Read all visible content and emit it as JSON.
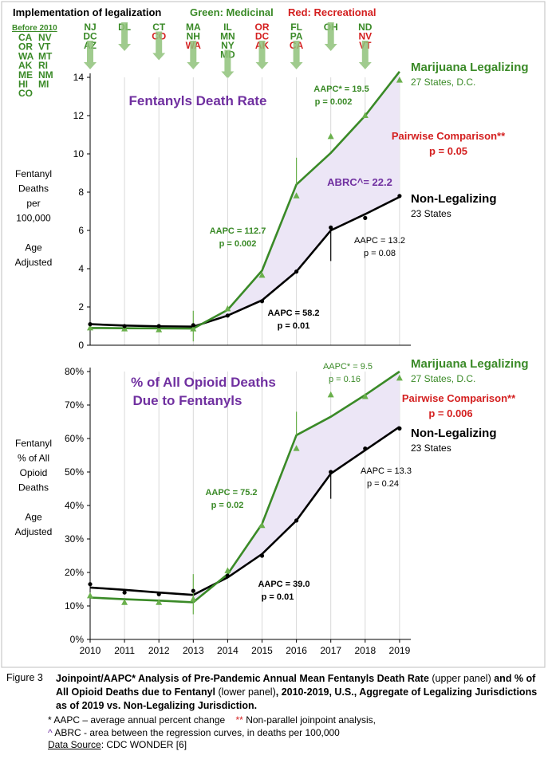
{
  "header": {
    "impl_label": "Implementation of legalization",
    "green_label": "Green: Medicinal",
    "red_label": "Red: Recreational",
    "before_label": "Before 2010",
    "before_states_col1": [
      "CA",
      "OR",
      "WA",
      "AK",
      "ME",
      "HI",
      "CO"
    ],
    "before_states_col2": [
      "NV",
      "VT",
      "MT",
      "RI",
      "NM",
      "MI"
    ],
    "before_states_col2_colors": [
      "green",
      "green",
      "green",
      "green",
      "green",
      "green"
    ],
    "arrows": [
      {
        "year": 2010,
        "states": [
          {
            "s": "NJ",
            "c": "green"
          },
          {
            "s": "DC",
            "c": "green"
          },
          {
            "s": "AZ",
            "c": "green"
          }
        ]
      },
      {
        "year": 2011,
        "states": [
          {
            "s": "DL",
            "c": "green"
          }
        ]
      },
      {
        "year": 2012,
        "states": [
          {
            "s": "CT",
            "c": "green"
          },
          {
            "s": "CO",
            "c": "red"
          }
        ]
      },
      {
        "year": 2013,
        "states": [
          {
            "s": "MA",
            "c": "green"
          },
          {
            "s": "NH",
            "c": "green"
          },
          {
            "s": "WA",
            "c": "red"
          }
        ]
      },
      {
        "year": 2014,
        "states": [
          {
            "s": "IL",
            "c": "green"
          },
          {
            "s": "MN",
            "c": "green"
          },
          {
            "s": "NY",
            "c": "green"
          },
          {
            "s": "MD",
            "c": "green"
          }
        ]
      },
      {
        "year": 2015,
        "states": [
          {
            "s": "OR",
            "c": "red"
          },
          {
            "s": "DC",
            "c": "red"
          },
          {
            "s": "AK",
            "c": "red"
          }
        ]
      },
      {
        "year": 2016,
        "states": [
          {
            "s": "FL",
            "c": "green"
          },
          {
            "s": "PA",
            "c": "green"
          },
          {
            "s": "CA",
            "c": "red"
          }
        ]
      },
      {
        "year": 2017,
        "states": [
          {
            "s": "OH",
            "c": "green"
          }
        ]
      },
      {
        "year": 2018,
        "states": [
          {
            "s": "ND",
            "c": "green"
          },
          {
            "s": "NV",
            "c": "red"
          },
          {
            "s": "VT",
            "c": "red"
          }
        ]
      }
    ]
  },
  "colors": {
    "green_line": "#3a8a27",
    "green_marker": "#6ab04c",
    "black_line": "#000000",
    "shade": "#ece6f6",
    "purple_text": "#7030a0",
    "red_text": "#d42020",
    "arrow_fill": "#8fc27a"
  },
  "chart_data": [
    {
      "type": "line",
      "title": "Fentanyls Death Rate",
      "ylabel_lines": [
        "Fentanyl",
        "Deaths",
        "per",
        "100,000",
        "",
        "Age",
        "Adjusted"
      ],
      "x": [
        2010,
        2011,
        2012,
        2013,
        2014,
        2015,
        2016,
        2017,
        2018,
        2019
      ],
      "ylim": [
        0,
        14
      ],
      "yticks": [
        0,
        2,
        4,
        6,
        8,
        10,
        12,
        14
      ],
      "ytick_labels": [
        "0",
        "2",
        "4",
        "6",
        "8",
        "10",
        "12",
        "14"
      ],
      "series": [
        {
          "name": "Marijuana Legalizing",
          "sublabel": "27 States, D.C.",
          "color": "green",
          "observed": [
            0.9,
            0.85,
            0.8,
            0.85,
            1.9,
            3.65,
            7.8,
            10.9,
            12.0,
            13.85
          ],
          "fit": [
            0.9,
            0.89,
            0.88,
            0.87,
            1.85,
            3.9,
            8.4,
            10.05,
            12.0,
            14.3
          ]
        },
        {
          "name": "Non-Legalizing",
          "sublabel": "23 States",
          "color": "black",
          "observed": [
            1.1,
            1.0,
            1.0,
            1.05,
            1.55,
            2.3,
            3.85,
            6.15,
            6.65,
            7.8
          ],
          "fit": [
            1.1,
            1.03,
            0.99,
            0.97,
            1.55,
            2.35,
            3.85,
            6.0,
            6.85,
            7.75
          ]
        }
      ],
      "annotations": {
        "green_aapc_1": "AAPC = 112.7",
        "green_p_1": "p = 0.002",
        "green_aapc_2": "AAPC* = 19.5",
        "green_p_2": "p = 0.002",
        "black_aapc_1": "AAPC = 58.2",
        "black_p_1": "p = 0.01",
        "black_aapc_2": "AAPC = 13.2",
        "black_p_2": "p = 0.08",
        "abrc": "ABRC^= 22.2",
        "pairwise": "Pairwise Comparison**",
        "pairwise_p": "p = 0.05"
      }
    },
    {
      "type": "line",
      "title": "% of All Opioid Deaths Due to Fentanyls",
      "title_lines": [
        "% of All Opioid Deaths",
        "Due to Fentanyls"
      ],
      "ylabel_lines": [
        "Fentanyl",
        "% of All",
        "Opioid",
        "Deaths",
        "",
        "Age",
        "Adjusted"
      ],
      "x": [
        2010,
        2011,
        2012,
        2013,
        2014,
        2015,
        2016,
        2017,
        2018,
        2019
      ],
      "ylim": [
        0,
        80
      ],
      "yticks": [
        0,
        10,
        20,
        30,
        40,
        50,
        60,
        70,
        80
      ],
      "ytick_labels": [
        "0%",
        "10%",
        "20%",
        "30%",
        "40%",
        "50%",
        "60%",
        "70%",
        "80%"
      ],
      "xtick_labels": [
        "2010",
        "2011",
        "2012",
        "2013",
        "2014",
        "2015",
        "2016",
        "2017",
        "2018",
        "2019"
      ],
      "series": [
        {
          "name": "Marijuana Legalizing",
          "sublabel": "27 States, D.C.",
          "color": "green",
          "observed": [
            13.0,
            11.0,
            11.0,
            12.0,
            20.5,
            34.0,
            57.0,
            73.0,
            72.5,
            78.0
          ],
          "fit": [
            12.5,
            12.0,
            11.6,
            11.1,
            19.5,
            34.5,
            61.0,
            66.5,
            73.0,
            80.0
          ]
        },
        {
          "name": "Non-Legalizing",
          "sublabel": "23 States",
          "color": "black",
          "observed": [
            16.5,
            14.0,
            13.5,
            14.5,
            19.0,
            25.0,
            35.5,
            50.0,
            57.0,
            63.0
          ],
          "fit": [
            15.5,
            14.8,
            14.0,
            13.3,
            18.5,
            25.5,
            35.5,
            49.5,
            56.5,
            63.5
          ]
        }
      ],
      "annotations": {
        "green_aapc_1": "AAPC = 75.2",
        "green_p_1": "p = 0.02",
        "green_aapc_2": "AAPC* = 9.5",
        "green_p_2": "p = 0.16",
        "black_aapc_1": "AAPC = 39.0",
        "black_p_1": "p = 0.01",
        "black_aapc_2": "AAPC = 13.3",
        "black_p_2": "p = 0.24",
        "pairwise": "Pairwise Comparison**",
        "pairwise_p": "p = 0.006"
      }
    }
  ],
  "caption": {
    "label": "Figure 3",
    "bold1": "Joinpoint/AAPC* Analysis of Pre-Pandemic Annual Mean Fentanyls Death Rate",
    "plain1": " (upper panel) ",
    "bold2": "and % of All Opioid Deaths due to Fentanyl",
    "plain2": " (lower panel)",
    "bold3": ", 2010-2019, U.S., Aggregate of Legalizing Jurisdictions as of 2019 vs. Non-Legalizing Jurisdiction.",
    "note1_star": "*",
    "note1": " AAPC – average annual percent change",
    "note1b_star": "**",
    "note1b": " Non-parallel joinpoint analysis,",
    "note2_caret": "^",
    "note2": " ABRC - area between the regression curves, in deaths per 100,000",
    "note3_label": "Data Source",
    "note3": ":  CDC WONDER [6]"
  }
}
